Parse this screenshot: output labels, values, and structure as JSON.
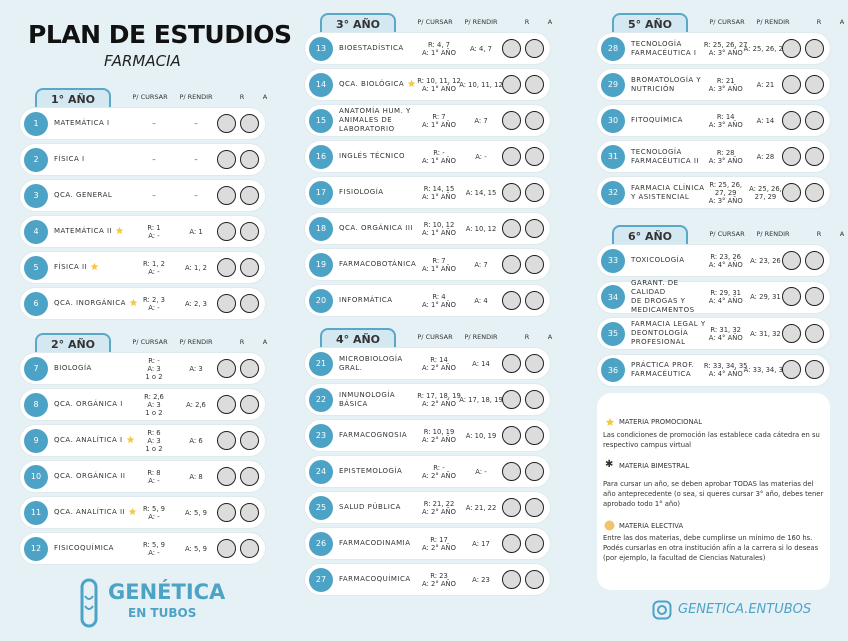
{
  "header": {
    "title": "PLAN DE ESTUDIOS",
    "subtitle": "FARMACIA"
  },
  "columns": [
    "P/ CURSAR",
    "P/ RENDIR",
    "R",
    "A"
  ],
  "years": [
    {
      "title": "1° AÑO",
      "subjects": [
        {
          "num": "1",
          "name": [
            "MATEMÁTICA I"
          ],
          "cursar": [
            "–"
          ],
          "rendir": [
            "–"
          ]
        },
        {
          "num": "2",
          "name": [
            "FÍSICA I"
          ],
          "cursar": [
            "–"
          ],
          "rendir": [
            "–"
          ]
        },
        {
          "num": "3",
          "name": [
            "QCA. GENERAL"
          ],
          "cursar": [
            "–"
          ],
          "rendir": [
            "–"
          ]
        },
        {
          "num": "4",
          "name": [
            "MATEMÁTICA II"
          ],
          "star": true,
          "cursar": [
            "R: 1",
            "A: -"
          ],
          "rendir": [
            "A: 1"
          ]
        },
        {
          "num": "5",
          "name": [
            "FÍSICA II"
          ],
          "star": true,
          "cursar": [
            "R: 1, 2",
            "A: -"
          ],
          "rendir": [
            "A: 1, 2"
          ]
        },
        {
          "num": "6",
          "name": [
            "QCA. INORGÁNICA"
          ],
          "star": true,
          "cursar": [
            "R: 2, 3",
            "A: -"
          ],
          "rendir": [
            "A: 2, 3"
          ]
        }
      ]
    },
    {
      "title": "2° AÑO",
      "subjects": [
        {
          "num": "7",
          "name": [
            "BIOLOGÍA"
          ],
          "cursar": [
            "R: -",
            "A: 3",
            "1 o 2"
          ],
          "rendir": [
            "A: 3"
          ]
        },
        {
          "num": "8",
          "name": [
            "QCA. ORGÁNICA I"
          ],
          "cursar": [
            "R: 2,6",
            "A: 3",
            "1 o 2"
          ],
          "rendir": [
            "A: 2,6"
          ]
        },
        {
          "num": "9",
          "name": [
            "QCA. ANALÍTICA I"
          ],
          "star": true,
          "cursar": [
            "R: 6",
            "A: 3",
            "1 o 2"
          ],
          "rendir": [
            "A: 6"
          ]
        },
        {
          "num": "10",
          "name": [
            "QCA. ORGÁNICA II"
          ],
          "cursar": [
            "R: 8",
            "A: -"
          ],
          "rendir": [
            "A: 8"
          ]
        },
        {
          "num": "11",
          "name": [
            "QCA. ANALÍTICA II"
          ],
          "star": true,
          "cursar": [
            "R: 5, 9",
            "A: -"
          ],
          "rendir": [
            "A: 5, 9"
          ]
        },
        {
          "num": "12",
          "name": [
            "FISICOQUÍMICA"
          ],
          "cursar": [
            "R: 5, 9",
            "A: -"
          ],
          "rendir": [
            "A: 5, 9"
          ]
        }
      ]
    },
    {
      "title": "3° AÑO",
      "subjects": [
        {
          "num": "13",
          "name": [
            "BIOESTADÍSTICA"
          ],
          "cursar": [
            "R: 4, 7",
            "A: 1° AÑO"
          ],
          "rendir": [
            "A: 4, 7"
          ]
        },
        {
          "num": "14",
          "name": [
            "QCA. BIOLÓGICA"
          ],
          "star": true,
          "cursar": [
            "R: 10, 11, 12",
            "A: 1° AÑO"
          ],
          "rendir": [
            "A: 10, 11, 12"
          ]
        },
        {
          "num": "15",
          "name": [
            "ANATOMÍA HUM. Y",
            "ANIMALES DE",
            "LABORATORIO"
          ],
          "cursar": [
            "R: 7",
            "A: 1° AÑO"
          ],
          "rendir": [
            "A: 7"
          ]
        },
        {
          "num": "16",
          "name": [
            "INGLÉS TÉCNICO"
          ],
          "cursar": [
            "R: -",
            "A: 1° AÑO"
          ],
          "rendir": [
            "A: -"
          ]
        },
        {
          "num": "17",
          "name": [
            "FISIOLOGÍA"
          ],
          "cursar": [
            "R: 14, 15",
            "A: 1° AÑO"
          ],
          "rendir": [
            "A: 14, 15"
          ]
        },
        {
          "num": "18",
          "name": [
            "QCA. ORGÁNICA III"
          ],
          "cursar": [
            "R: 10, 12",
            "A: 1° AÑO"
          ],
          "rendir": [
            "A: 10, 12"
          ]
        },
        {
          "num": "19",
          "name": [
            "FARMACOBOTÁNICA"
          ],
          "cursar": [
            "R: 7",
            "A: 1° AÑO"
          ],
          "rendir": [
            "A: 7"
          ]
        },
        {
          "num": "20",
          "name": [
            "INFORMÁTICA"
          ],
          "cursar": [
            "R: 4",
            "A: 1° AÑO"
          ],
          "rendir": [
            "A: 4"
          ]
        }
      ]
    },
    {
      "title": "4° AÑO",
      "subjects": [
        {
          "num": "21",
          "name": [
            "MICROBIOLOGÍA",
            "GRAL."
          ],
          "cursar": [
            "R: 14",
            "A: 2° AÑO"
          ],
          "rendir": [
            "A: 14"
          ]
        },
        {
          "num": "22",
          "name": [
            "INMUNOLOGÍA",
            "BÁSICA"
          ],
          "cursar": [
            "R: 17, 18, 19",
            "A: 2° AÑO"
          ],
          "rendir": [
            "A: 17, 18, 19"
          ]
        },
        {
          "num": "23",
          "name": [
            "FARMACOGNOSIA"
          ],
          "cursar": [
            "R: 10, 19",
            "A: 2° AÑO"
          ],
          "rendir": [
            "A: 10, 19"
          ]
        },
        {
          "num": "24",
          "name": [
            "EPISTEMOLOGÍA"
          ],
          "cursar": [
            "R: -",
            "A: 2° AÑO"
          ],
          "rendir": [
            "A: -"
          ]
        },
        {
          "num": "25",
          "name": [
            "SALUD PÚBLICA"
          ],
          "cursar": [
            "R: 21, 22",
            "A: 2° AÑO"
          ],
          "rendir": [
            "A: 21, 22"
          ]
        },
        {
          "num": "26",
          "name": [
            "FARMACODINAMIA"
          ],
          "cursar": [
            "R: 17",
            "A: 2° AÑO"
          ],
          "rendir": [
            "A: 17"
          ]
        },
        {
          "num": "27",
          "name": [
            "FARMACOQUÍMICA"
          ],
          "cursar": [
            "R: 23",
            "A: 2° AÑO"
          ],
          "rendir": [
            "A: 23"
          ]
        }
      ]
    },
    {
      "title": "5° AÑO",
      "subjects": [
        {
          "num": "28",
          "name": [
            "TECNOLOGÍA",
            "FARMACÉUTICA I"
          ],
          "cursar": [
            "R: 25, 26, 27",
            "A: 3° AÑO"
          ],
          "rendir": [
            "A: 25, 26, 27"
          ]
        },
        {
          "num": "29",
          "name": [
            "BROMATOLOGÍA Y",
            "NUTRICIÓN"
          ],
          "cursar": [
            "R: 21",
            "A: 3° AÑO"
          ],
          "rendir": [
            "A: 21"
          ]
        },
        {
          "num": "30",
          "name": [
            "FITOQUÍMICA"
          ],
          "cursar": [
            "R: 14",
            "A: 3° AÑO"
          ],
          "rendir": [
            "A: 14"
          ]
        },
        {
          "num": "31",
          "name": [
            "TECNOLOGÍA",
            "FARMACÉUTICA II"
          ],
          "cursar": [
            "R: 28",
            "A: 3° AÑO"
          ],
          "rendir": [
            "A: 28"
          ]
        },
        {
          "num": "32",
          "name": [
            "FARMACIA CLÍNICA",
            "Y ASISTENCIAL"
          ],
          "cursar": [
            "R: 25, 26,",
            "27, 29",
            "A: 3° AÑO"
          ],
          "rendir": [
            "A: 25, 26,",
            "27, 29"
          ]
        }
      ]
    },
    {
      "title": "6° AÑO",
      "subjects": [
        {
          "num": "33",
          "name": [
            "TOXICOLOGÍA"
          ],
          "cursar": [
            "R: 23, 26",
            "A: 4° AÑO"
          ],
          "rendir": [
            "A: 23, 26"
          ]
        },
        {
          "num": "34",
          "name": [
            "GARANT. DE CALIDAD",
            "DE DROGAS Y",
            "MEDICAMENTOS"
          ],
          "cursar": [
            "R: 29, 31",
            "A: 4° AÑO"
          ],
          "rendir": [
            "A: 29, 31"
          ]
        },
        {
          "num": "35",
          "name": [
            "FARMACIA LEGAL Y",
            "DEONTOLOGÍA",
            "PROFESIONAL"
          ],
          "cursar": [
            "R: 31, 32",
            "A: 4° AÑO"
          ],
          "rendir": [
            "A: 31, 32"
          ]
        },
        {
          "num": "36",
          "name": [
            "PRÁCTICA PROF.",
            "FARMACÉUTICA"
          ],
          "cursar": [
            "R: 33, 34, 35",
            "A: 4° AÑO"
          ],
          "rendir": [
            "A: 33, 34, 35"
          ]
        }
      ]
    }
  ],
  "legend": {
    "promo": "MATERIA PROMOCIONAL",
    "promo_text": "Las condiciones de promoción las establece cada cátedra en su respectivo campus virtual",
    "bimestral": "MATERIA BIMESTRAL",
    "rule_text": "Para cursar un año, se deben aprobar TODAS las materias del año anteprecedente (o sea, si queres cursar 3° año, debes tener aprobado todo 1° año)",
    "electiva": "MATERIA ELECTIVA",
    "electiva_text": "Entre las dos materias, debe cumplirse un mínimo de 160 hs. Podés cursarlas en otra institución afín a la carrera si lo deseas (por ejemplo, la facultad de Ciencias Naturales)"
  },
  "brand": {
    "name": "GENÉTICA",
    "sub": "EN TUBOS",
    "handle": "GENETICA.ENTUBOS"
  }
}
